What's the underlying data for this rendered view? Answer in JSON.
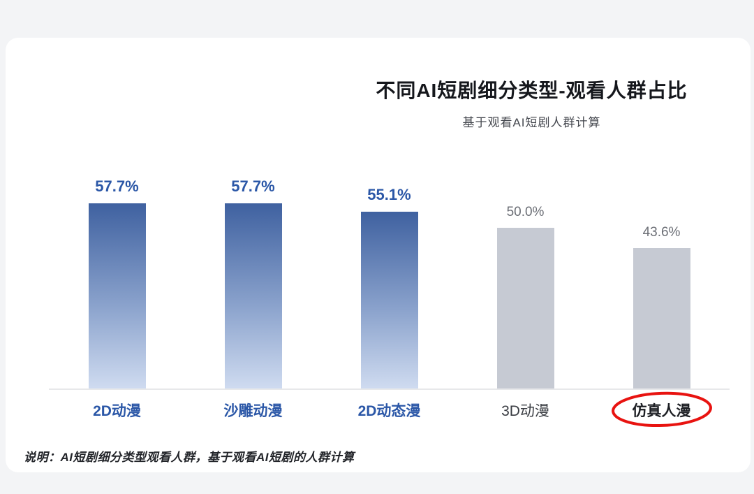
{
  "page": {
    "background_color": "#f3f4f6",
    "card_color": "#ffffff"
  },
  "header": {
    "title": "不同AI短剧细分类型-观看人群占比",
    "subtitle": "基于观看AI短剧人群计算"
  },
  "footnote": "说明：AI短剧细分类型观看人群，基于观看AI短剧的人群计算",
  "chart_data": {
    "type": "bar",
    "title": "不同AI短剧细分类型-观看人群占比",
    "subtitle": "基于观看AI短剧人群计算",
    "categories": [
      "2D动漫",
      "沙雕动漫",
      "2D动态漫",
      "3D动漫",
      "仿真人漫"
    ],
    "values": [
      57.7,
      57.7,
      55.1,
      50.0,
      43.6
    ],
    "value_labels": [
      "57.7%",
      "57.7%",
      "55.1%",
      "50.0%",
      "43.6%"
    ],
    "highlighted": [
      true,
      true,
      true,
      false,
      false
    ],
    "annotation": {
      "category": "仿真人漫",
      "shape": "hand-drawn-red-ellipse"
    },
    "ylim": [
      0,
      60
    ],
    "grid": false,
    "legend": false,
    "colors": {
      "highlight_bar_top": "#3f61a0",
      "highlight_bar_bottom": "#cfdbf0",
      "muted_bar": "#c6cad3",
      "highlight_label": "#2b57a7",
      "muted_value_label": "#6b6e75",
      "muted_category_label": "#393c42",
      "annotation_red": "#e81310"
    }
  }
}
